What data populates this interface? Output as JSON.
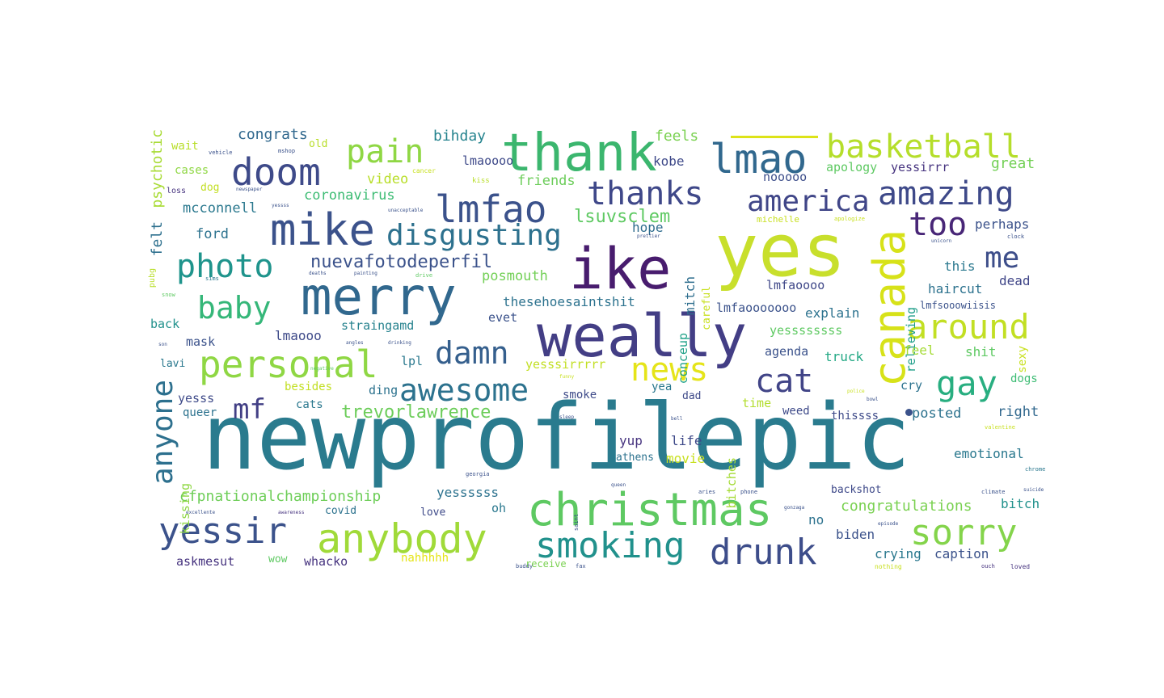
{
  "words": [
    {
      "text": "newprofilepic",
      "color": "#2a7b8e"
    },
    {
      "text": "yes",
      "color": "#c8df2c"
    },
    {
      "text": "ike",
      "color": "#481c6e"
    },
    {
      "text": "weally",
      "color": "#433e85"
    },
    {
      "text": "thank",
      "color": "#3bb66e"
    },
    {
      "text": "merry",
      "color": "#31688e"
    },
    {
      "text": "christmas",
      "color": "#5ec962"
    },
    {
      "text": "mike",
      "color": "#3b528b"
    },
    {
      "text": "lmao",
      "color": "#31688e"
    },
    {
      "text": "anybody",
      "color": "#a0da39"
    },
    {
      "text": "canada",
      "color": "#d7e219"
    },
    {
      "text": "doom",
      "color": "#3e4a89"
    },
    {
      "text": "personal",
      "color": "#8fd744"
    },
    {
      "text": "lmfao",
      "color": "#3b528b"
    },
    {
      "text": "basketball",
      "color": "#b5de2b"
    },
    {
      "text": "thanks",
      "color": "#3f4889"
    },
    {
      "text": "amazing",
      "color": "#3e4989"
    },
    {
      "text": "yessir",
      "color": "#3b528b"
    },
    {
      "text": "smoking",
      "color": "#21918c"
    },
    {
      "text": "drunk",
      "color": "#3d4d8a"
    },
    {
      "text": "sorry",
      "color": "#84d44b"
    },
    {
      "text": "awesome",
      "color": "#2c728e"
    },
    {
      "text": "disgusting",
      "color": "#2d718e"
    },
    {
      "text": "photo",
      "color": "#1f948c"
    },
    {
      "text": "baby",
      "color": "#35b779"
    },
    {
      "text": "pain",
      "color": "#8fd744"
    },
    {
      "text": "anyone",
      "color": "#2d708e"
    },
    {
      "text": "around",
      "color": "#c2df23"
    },
    {
      "text": "damn",
      "color": "#355f8d"
    },
    {
      "text": "news",
      "color": "#e5e419"
    },
    {
      "text": "gay",
      "color": "#28ae80"
    },
    {
      "text": "cat",
      "color": "#414487"
    },
    {
      "text": "too",
      "color": "#482677"
    },
    {
      "text": "america",
      "color": "#404688"
    },
    {
      "text": "me",
      "color": "#3d4e8a"
    },
    {
      "text": "mf",
      "color": "#423f85"
    },
    {
      "text": "nuevafotodeperfil",
      "color": "#3b528b"
    },
    {
      "text": "lsuvsclem",
      "color": "#5ec962"
    },
    {
      "text": "trevorlawrence",
      "color": "#6ccd5a"
    },
    {
      "text": "cfpnationalchampionship",
      "color": "#6ece58"
    },
    {
      "text": "congratulations",
      "color": "#7ad151"
    },
    {
      "text": "psychotic",
      "color": "#a8db34"
    },
    {
      "text": "felt",
      "color": "#2d708e"
    },
    {
      "text": "congrats",
      "color": "#31688e"
    },
    {
      "text": "bihday",
      "color": "#25838e"
    },
    {
      "text": "feels",
      "color": "#7ad151"
    },
    {
      "text": "kobe",
      "color": "#3e4989"
    },
    {
      "text": "apology",
      "color": "#5ec962"
    },
    {
      "text": "yessirrr",
      "color": "#46337f"
    },
    {
      "text": "great",
      "color": "#73d056"
    },
    {
      "text": "friends",
      "color": "#6ccd5a"
    },
    {
      "text": "video",
      "color": "#b8de29"
    },
    {
      "text": "lmaoooo",
      "color": "#3e4989"
    },
    {
      "text": "nooooo",
      "color": "#3d4e8a"
    },
    {
      "text": "coronavirus",
      "color": "#3dbc74"
    },
    {
      "text": "mcconnell",
      "color": "#2a788e"
    },
    {
      "text": "ford",
      "color": "#2c728e"
    },
    {
      "text": "hope",
      "color": "#2f6c8e"
    },
    {
      "text": "mitch",
      "color": "#2e6e8e"
    },
    {
      "text": "perhaps",
      "color": "#3b528b"
    },
    {
      "text": "this",
      "color": "#2a788e"
    },
    {
      "text": "relieving",
      "color": "#1f9e89"
    },
    {
      "text": "careful",
      "color": "#c8e020"
    },
    {
      "text": "conceup",
      "color": "#1fa188"
    },
    {
      "text": "posmouth",
      "color": "#73d056"
    },
    {
      "text": "lmfaoooo",
      "color": "#3f4788"
    },
    {
      "text": "haircut",
      "color": "#2c728e"
    },
    {
      "text": "dead",
      "color": "#404688"
    },
    {
      "text": "thesehoesaintshit",
      "color": "#2c728e"
    },
    {
      "text": "lmfaooooooo",
      "color": "#3b528b"
    },
    {
      "text": "lmfsooowiisis",
      "color": "#3b528b"
    },
    {
      "text": "explain",
      "color": "#2c728e"
    },
    {
      "text": "evet",
      "color": "#3b528b"
    },
    {
      "text": "straingamd",
      "color": "#26828e"
    },
    {
      "text": "lmaooo",
      "color": "#3e4a89"
    },
    {
      "text": "yessssssss",
      "color": "#5ec962"
    },
    {
      "text": "agenda",
      "color": "#3b528b"
    },
    {
      "text": "truck",
      "color": "#22a884"
    },
    {
      "text": "feel",
      "color": "#a5db36"
    },
    {
      "text": "shit",
      "color": "#5ec962"
    },
    {
      "text": "sexy",
      "color": "#c8e020"
    },
    {
      "text": "back",
      "color": "#21918c"
    },
    {
      "text": "mask",
      "color": "#3b528b"
    },
    {
      "text": "lavi",
      "color": "#2a788e"
    },
    {
      "text": "lpl",
      "color": "#2a788e"
    },
    {
      "text": "yesssirrrrr",
      "color": "#c2df23"
    },
    {
      "text": "yesss",
      "color": "#3e4a89"
    },
    {
      "text": "besides",
      "color": "#c2df23"
    },
    {
      "text": "ding",
      "color": "#2c728e"
    },
    {
      "text": "smoke",
      "color": "#3e4a89"
    },
    {
      "text": "yea",
      "color": "#2a788e"
    },
    {
      "text": "dad",
      "color": "#3e4a89"
    },
    {
      "text": "bitches",
      "color": "#a5db36"
    },
    {
      "text": "time",
      "color": "#b2dd2d"
    },
    {
      "text": "cry",
      "color": "#2c728e"
    },
    {
      "text": "dogs",
      "color": "#3dbc74"
    },
    {
      "text": "queer",
      "color": "#2c728e"
    },
    {
      "text": "cats",
      "color": "#2a788e"
    },
    {
      "text": "weed",
      "color": "#3e4a89"
    },
    {
      "text": "thissss",
      "color": "#3e4a89"
    },
    {
      "text": "posted",
      "color": "#2c728e"
    },
    {
      "text": "right",
      "color": "#31688e"
    },
    {
      "text": "kissing",
      "color": "#8fd744"
    },
    {
      "text": "yup",
      "color": "#46337f"
    },
    {
      "text": "life",
      "color": "#3e4989"
    },
    {
      "text": "movie",
      "color": "#c8e020"
    },
    {
      "text": "athens",
      "color": "#2c728e"
    },
    {
      "text": "emotional",
      "color": "#2a788e"
    },
    {
      "text": "yessssss",
      "color": "#2c728e"
    },
    {
      "text": "oh",
      "color": "#2a788e"
    },
    {
      "text": "love",
      "color": "#3e4a89"
    },
    {
      "text": "covid",
      "color": "#2c728e"
    },
    {
      "text": "backshot",
      "color": "#3e4989"
    },
    {
      "text": "bitch",
      "color": "#21918c"
    },
    {
      "text": "no",
      "color": "#2c728e"
    },
    {
      "text": "biden",
      "color": "#3b528b"
    },
    {
      "text": "crying",
      "color": "#2a788e"
    },
    {
      "text": "caption",
      "color": "#3b528b"
    },
    {
      "text": "askmesut",
      "color": "#46337f"
    },
    {
      "text": "wow",
      "color": "#5ec962"
    },
    {
      "text": "whacko",
      "color": "#46337f"
    },
    {
      "text": "nahhhhh",
      "color": "#e5e419"
    },
    {
      "text": "receive",
      "color": "#7ad151"
    },
    {
      "text": "wait",
      "color": "#b8de29"
    },
    {
      "text": "cases",
      "color": "#8fd744"
    },
    {
      "text": "dog",
      "color": "#c2df23"
    },
    {
      "text": "loss",
      "color": "#46337f"
    },
    {
      "text": "old",
      "color": "#b8de29"
    },
    {
      "text": "pubg",
      "color": "#b8de29"
    },
    {
      "text": "vehicle",
      "color": "#3b528b"
    },
    {
      "text": "mshop",
      "color": "#3b528b"
    },
    {
      "text": "newspaper",
      "color": "#3b528b"
    },
    {
      "text": "yessss",
      "color": "#3b528b"
    },
    {
      "text": "unacceptable",
      "color": "#3b528b"
    },
    {
      "text": "cancer",
      "color": "#c8e020"
    },
    {
      "text": "kiss",
      "color": "#b8de29"
    },
    {
      "text": "michelle",
      "color": "#c8e020"
    },
    {
      "text": "apologize",
      "color": "#c8e020"
    },
    {
      "text": "unicorn",
      "color": "#3b528b"
    },
    {
      "text": "clock",
      "color": "#3b528b"
    },
    {
      "text": "snow",
      "color": "#5ec962"
    },
    {
      "text": "sims",
      "color": "#2a788e"
    },
    {
      "text": "deaths",
      "color": "#3b528b"
    },
    {
      "text": "drive",
      "color": "#5ec962"
    },
    {
      "text": "painting",
      "color": "#3b528b"
    },
    {
      "text": "excellente",
      "color": "#3b528b"
    },
    {
      "text": "awareness",
      "color": "#46337f"
    },
    {
      "text": "georgia",
      "color": "#3b528b"
    },
    {
      "text": "gonzaga",
      "color": "#3b528b"
    },
    {
      "text": "episode",
      "color": "#3b528b"
    },
    {
      "text": "nothing",
      "color": "#c8e020"
    },
    {
      "text": "fax",
      "color": "#3b528b"
    },
    {
      "text": "buddy",
      "color": "#3b528b"
    },
    {
      "text": "loved",
      "color": "#46337f"
    },
    {
      "text": "ouch",
      "color": "#46337f"
    },
    {
      "text": "valentine",
      "color": "#c8e020"
    },
    {
      "text": "climate",
      "color": "#3b528b"
    },
    {
      "text": "chrome",
      "color": "#2a788e"
    },
    {
      "text": "negative",
      "color": "#5ec962"
    },
    {
      "text": "angles",
      "color": "#3b528b"
    },
    {
      "text": "drinking",
      "color": "#3b528b"
    },
    {
      "text": "sleep",
      "color": "#3b528b"
    },
    {
      "text": "funny",
      "color": "#c8e020"
    },
    {
      "text": "police",
      "color": "#c8e020"
    },
    {
      "text": "bowl",
      "color": "#3b528b"
    },
    {
      "text": "bell",
      "color": "#3b528b"
    },
    {
      "text": "son",
      "color": "#3b528b"
    },
    {
      "text": "aries",
      "color": "#3b528b"
    },
    {
      "text": "phone",
      "color": "#3b528b"
    },
    {
      "text": "prettier",
      "color": "#3b528b"
    },
    {
      "text": "suicide",
      "color": "#3b528b"
    },
    {
      "text": "saint",
      "color": "#3b528b"
    },
    {
      "text": "queen",
      "color": "#3b528b"
    },
    {
      "text": "sentimental",
      "color": "#2a788e"
    },
    {
      "text": "stress",
      "color": "#3b528b"
    }
  ]
}
